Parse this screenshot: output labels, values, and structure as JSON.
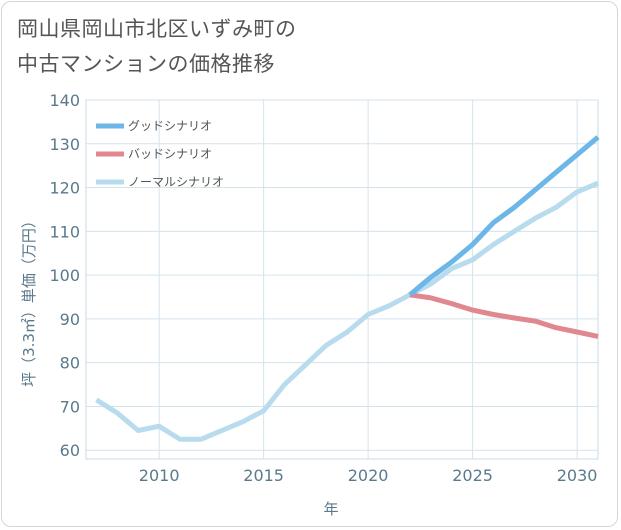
{
  "title_lines": [
    "岡山県岡山市北区いずみ町の",
    "中古マンションの価格推移"
  ],
  "chart_data": {
    "type": "line",
    "title": "岡山県岡山市北区いずみ町の中古マンションの価格推移",
    "xlabel": "年",
    "ylabel": "坪（3.3㎡）単価（万円）",
    "xlim": [
      2006.5,
      2031
    ],
    "ylim": [
      58,
      140
    ],
    "xticks": [
      2010,
      2015,
      2020,
      2025,
      2030
    ],
    "yticks": [
      60,
      70,
      80,
      90,
      100,
      110,
      120,
      130,
      140
    ],
    "grid": true,
    "legend_position": "top-left",
    "series": [
      {
        "name": "グッドシナリオ",
        "color": "#6cb6e8",
        "x": [
          2022,
          2023,
          2024,
          2025,
          2026,
          2027,
          2028,
          2029,
          2030,
          2031
        ],
        "values": [
          95.5,
          99.5,
          103,
          107,
          112,
          115.5,
          119.5,
          123.5,
          127.5,
          131.5
        ]
      },
      {
        "name": "バッドシナリオ",
        "color": "#e0878f",
        "x": [
          2022,
          2023,
          2024,
          2025,
          2026,
          2027,
          2028,
          2029,
          2030,
          2031
        ],
        "values": [
          95.5,
          94.8,
          93.5,
          92,
          91,
          90.2,
          89.5,
          88,
          87,
          86
        ]
      },
      {
        "name": "ノーマルシナリオ",
        "color": "#b8dced",
        "x": [
          2007,
          2008,
          2009,
          2010,
          2011,
          2012,
          2013,
          2014,
          2015,
          2016,
          2017,
          2018,
          2019,
          2020,
          2021,
          2022,
          2023,
          2024,
          2025,
          2026,
          2027,
          2028,
          2029,
          2030,
          2031
        ],
        "values": [
          71.5,
          68.5,
          64.5,
          65.5,
          62.5,
          62.5,
          64.5,
          66.5,
          69,
          75,
          79.5,
          84,
          87,
          91,
          93,
          95.5,
          98,
          101.5,
          103.5,
          107,
          110,
          113,
          115.5,
          119,
          121
        ]
      }
    ]
  }
}
